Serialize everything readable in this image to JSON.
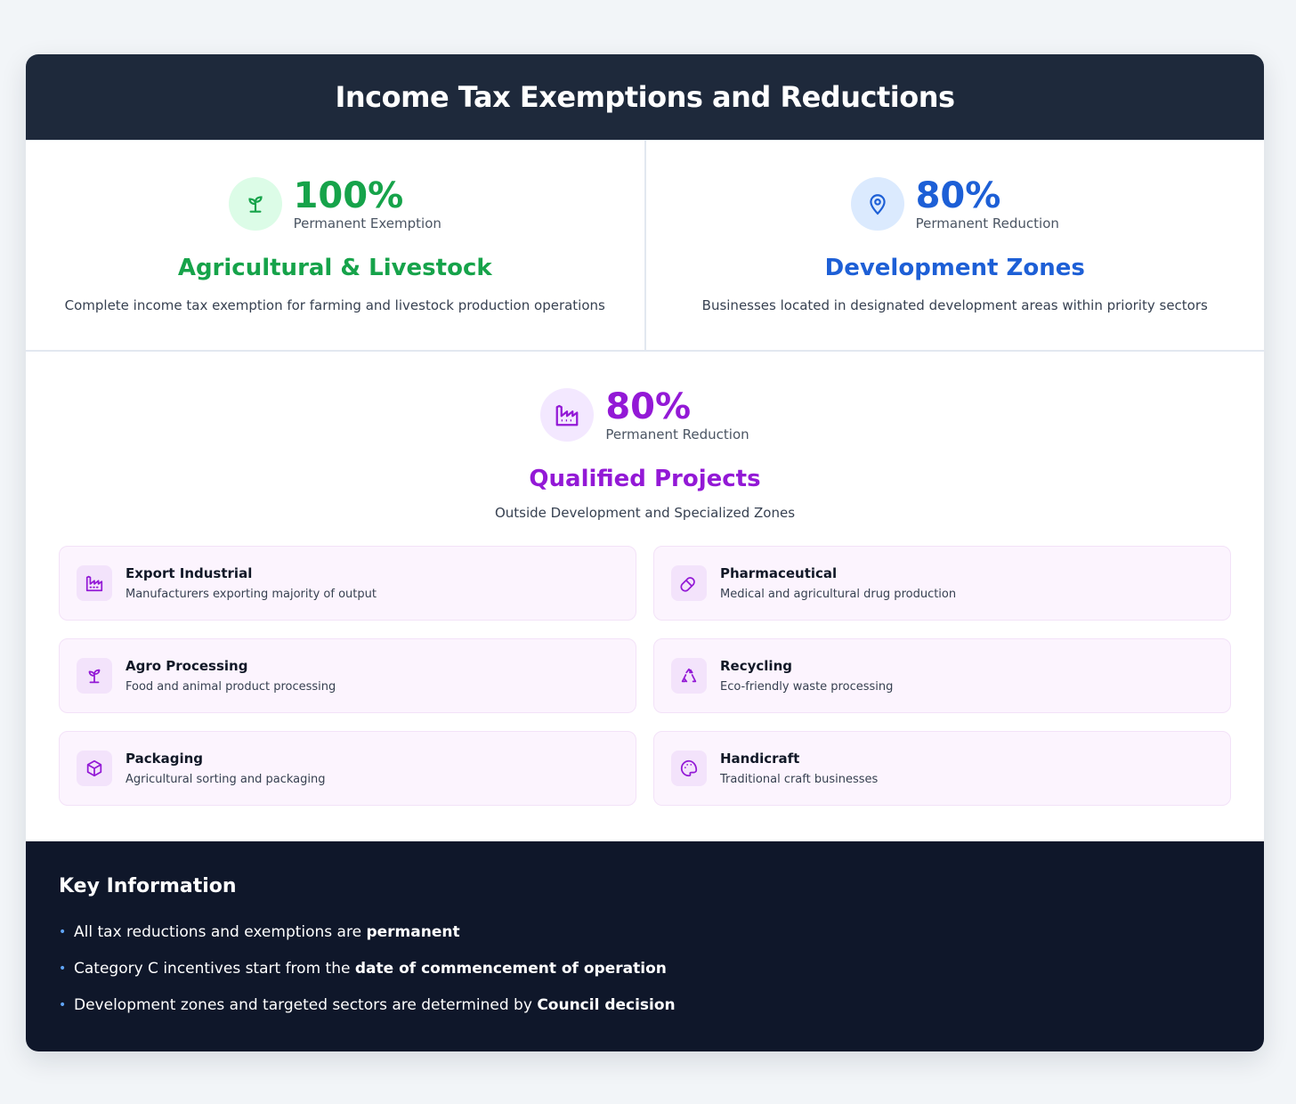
{
  "header": {
    "title": "Income Tax Exemptions and Reductions"
  },
  "cards": [
    {
      "percent": "100%",
      "label": "Permanent Exemption",
      "title": "Agricultural & Livestock",
      "description": "Complete income tax exemption for farming and livestock production operations"
    },
    {
      "percent": "80%",
      "label": "Permanent Reduction",
      "title": "Development Zones",
      "description": "Businesses located in designated development areas within priority sectors"
    }
  ],
  "qualified": {
    "percent": "80%",
    "label": "Permanent Reduction",
    "title": "Qualified Projects",
    "subtitle": "Outside Development and Specialized Zones",
    "items": [
      {
        "title": "Export Industrial",
        "description": "Manufacturers exporting majority of output"
      },
      {
        "title": "Pharmaceutical",
        "description": "Medical and agricultural drug production"
      },
      {
        "title": "Agro Processing",
        "description": "Food and animal product processing"
      },
      {
        "title": "Recycling",
        "description": "Eco-friendly waste processing"
      },
      {
        "title": "Packaging",
        "description": "Agricultural sorting and packaging"
      },
      {
        "title": "Handicraft",
        "description": "Traditional craft businesses"
      }
    ]
  },
  "key_info": {
    "title": "Key Information",
    "items": [
      {
        "text": "All tax reductions and exemptions are ",
        "bold": "permanent"
      },
      {
        "text": "Category C incentives start from the ",
        "bold": "date of commencement of operation"
      },
      {
        "text": "Development zones and targeted sectors are determined by ",
        "bold": "Council decision"
      }
    ]
  }
}
